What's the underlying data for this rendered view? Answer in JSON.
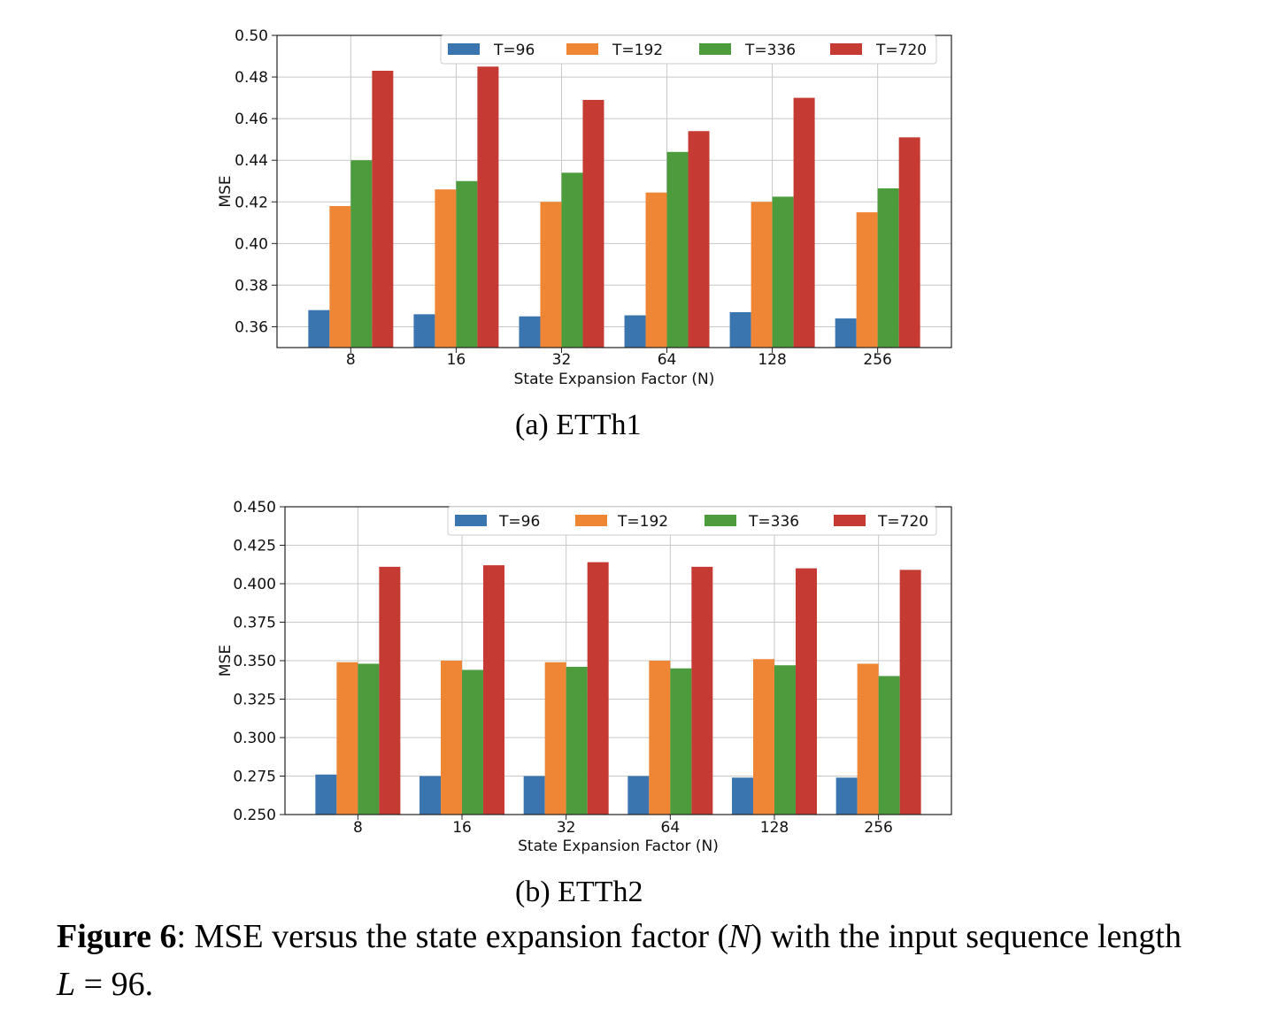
{
  "chart_data": [
    {
      "type": "bar",
      "categories": [
        "8",
        "16",
        "32",
        "64",
        "128",
        "256"
      ],
      "xlabel": "State Expansion Factor (N)",
      "ylabel": "MSE",
      "ylim": [
        0.35,
        0.5
      ],
      "yticks": [
        "0.36",
        "0.38",
        "0.40",
        "0.42",
        "0.44",
        "0.46",
        "0.48",
        "0.50"
      ],
      "grid": true,
      "legend_position": "top-right",
      "series": [
        {
          "name": "T=96",
          "color": "#3a75b0",
          "values": [
            0.368,
            0.366,
            0.365,
            0.3655,
            0.367,
            0.364
          ]
        },
        {
          "name": "T=192",
          "color": "#ef8636",
          "values": [
            0.418,
            0.426,
            0.42,
            0.4245,
            0.42,
            0.415
          ]
        },
        {
          "name": "T=336",
          "color": "#4c9c3e",
          "values": [
            0.44,
            0.43,
            0.434,
            0.444,
            0.4225,
            0.4265
          ]
        },
        {
          "name": "T=720",
          "color": "#c53a32",
          "values": [
            0.483,
            0.485,
            0.469,
            0.454,
            0.47,
            0.451
          ]
        }
      ],
      "subcaption": "(a) ETTh1"
    },
    {
      "type": "bar",
      "categories": [
        "8",
        "16",
        "32",
        "64",
        "128",
        "256"
      ],
      "xlabel": "State Expansion Factor (N)",
      "ylabel": "MSE",
      "ylim": [
        0.25,
        0.45
      ],
      "yticks": [
        "0.250",
        "0.275",
        "0.300",
        "0.325",
        "0.350",
        "0.375",
        "0.400",
        "0.425",
        "0.450"
      ],
      "grid": true,
      "legend_position": "top-right",
      "series": [
        {
          "name": "T=96",
          "color": "#3a75b0",
          "values": [
            0.276,
            0.275,
            0.275,
            0.275,
            0.274,
            0.274
          ]
        },
        {
          "name": "T=192",
          "color": "#ef8636",
          "values": [
            0.349,
            0.35,
            0.349,
            0.35,
            0.351,
            0.348
          ]
        },
        {
          "name": "T=336",
          "color": "#4c9c3e",
          "values": [
            0.348,
            0.344,
            0.346,
            0.345,
            0.347,
            0.34
          ]
        },
        {
          "name": "T=720",
          "color": "#c53a32",
          "values": [
            0.411,
            0.412,
            0.414,
            0.411,
            0.41,
            0.409
          ]
        }
      ],
      "subcaption": "(b) ETTh2"
    }
  ],
  "caption": {
    "label": "Figure 6",
    "text_before": ": MSE versus the state expansion factor (",
    "variable": "N",
    "text_middle": ") with the input sequence length ",
    "length_variable": "L",
    "text_after": " = 96."
  }
}
